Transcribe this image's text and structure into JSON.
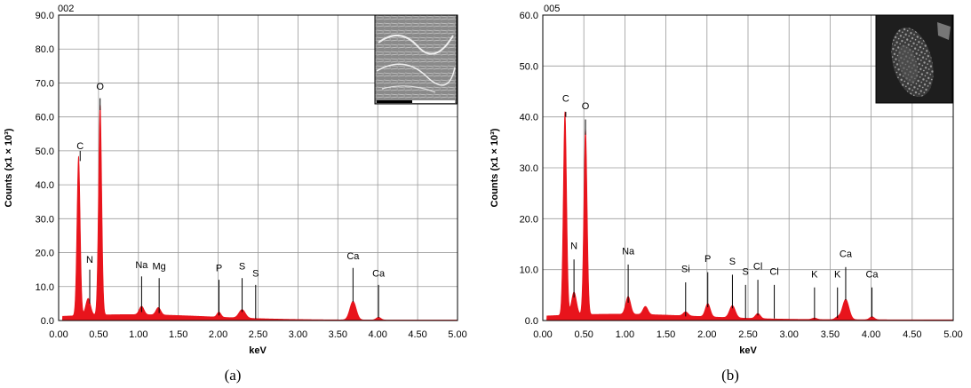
{
  "chart_data": [
    {
      "type": "line",
      "panel_label": "(a)",
      "spectrum_id": "002",
      "xlabel": "keV",
      "ylabel": "Counts (x1 × 10³)",
      "xlim": [
        0.0,
        5.0
      ],
      "ylim": [
        0.0,
        90.0
      ],
      "x_ticks": [
        "0.00",
        "0.50",
        "1.00",
        "1.50",
        "2.00",
        "2.50",
        "3.00",
        "3.50",
        "4.00",
        "4.50",
        "5.00"
      ],
      "y_ticks": [
        "0.0",
        "10.0",
        "20.0",
        "30.0",
        "40.0",
        "50.0",
        "60.0",
        "70.0",
        "80.0",
        "90.0"
      ],
      "grid": true,
      "series_color": "#e8141c",
      "peaks": [
        {
          "x": 0.25,
          "y": 47,
          "w": 0.02
        },
        {
          "x": 0.37,
          "y": 5,
          "w": 0.03
        },
        {
          "x": 0.52,
          "y": 62,
          "w": 0.02
        },
        {
          "x": 1.04,
          "y": 2.5,
          "w": 0.03
        },
        {
          "x": 1.25,
          "y": 2.2,
          "w": 0.03
        },
        {
          "x": 2.01,
          "y": 1.5,
          "w": 0.025
        },
        {
          "x": 2.3,
          "y": 2.5,
          "w": 0.04
        },
        {
          "x": 3.69,
          "y": 5.5,
          "w": 0.04
        },
        {
          "x": 4.01,
          "y": 0.8,
          "w": 0.03
        }
      ],
      "annotations": [
        {
          "label": "C",
          "x": 0.27,
          "y": 50.5,
          "line_top": 50.0,
          "line_bottom": 47.0
        },
        {
          "label": "O",
          "x": 0.52,
          "y": 68.0,
          "line_top": 65.5,
          "line_bottom": 62.0
        },
        {
          "label": "N",
          "x": 0.39,
          "y": 17.0,
          "line_top": 15.0,
          "line_bottom": 5.0
        },
        {
          "label": "Na",
          "x": 1.04,
          "y": 15.5,
          "line_top": 13.0,
          "line_bottom": 2.5
        },
        {
          "label": "Mg",
          "x": 1.26,
          "y": 15.0,
          "line_top": 12.5,
          "line_bottom": 2.2
        },
        {
          "label": "P",
          "x": 2.01,
          "y": 14.5,
          "line_top": 12.0,
          "line_bottom": 1.5
        },
        {
          "label": "S",
          "x": 2.3,
          "y": 15.0,
          "line_top": 12.5,
          "line_bottom": 2.5
        },
        {
          "label": "S",
          "x": 2.47,
          "y": 13.0,
          "line_top": 10.5,
          "line_bottom": 0.5
        },
        {
          "label": "Ca",
          "x": 3.69,
          "y": 18.0,
          "line_top": 15.5,
          "line_bottom": 5.5
        },
        {
          "label": "Ca",
          "x": 4.01,
          "y": 13.0,
          "line_top": 10.5,
          "line_bottom": 0.8
        }
      ],
      "inset": "sem-micrograph"
    },
    {
      "type": "line",
      "panel_label": "(b)",
      "spectrum_id": "005",
      "xlabel": "keV",
      "ylabel": "Counts (x1 × 10³)",
      "xlim": [
        0.0,
        5.0
      ],
      "ylim": [
        0.0,
        60.0
      ],
      "x_ticks": [
        "0.00",
        "0.50",
        "1.00",
        "1.50",
        "2.00",
        "2.50",
        "3.00",
        "3.50",
        "4.00",
        "4.50",
        "5.00"
      ],
      "y_ticks": [
        "0.0",
        "10.0",
        "20.0",
        "30.0",
        "40.0",
        "50.0",
        "60.0"
      ],
      "grid": true,
      "series_color": "#e8141c",
      "peaks": [
        {
          "x": 0.27,
          "y": 40,
          "w": 0.02
        },
        {
          "x": 0.38,
          "y": 4.5,
          "w": 0.03
        },
        {
          "x": 0.52,
          "y": 36.5,
          "w": 0.02
        },
        {
          "x": 1.04,
          "y": 3.5,
          "w": 0.03
        },
        {
          "x": 1.25,
          "y": 1.6,
          "w": 0.03
        },
        {
          "x": 1.74,
          "y": 0.8,
          "w": 0.03
        },
        {
          "x": 2.01,
          "y": 2.6,
          "w": 0.03
        },
        {
          "x": 2.31,
          "y": 2.4,
          "w": 0.035
        },
        {
          "x": 2.62,
          "y": 1.0,
          "w": 0.03
        },
        {
          "x": 3.31,
          "y": 0.3,
          "w": 0.03
        },
        {
          "x": 3.59,
          "y": 0.5,
          "w": 0.03
        },
        {
          "x": 3.69,
          "y": 4.0,
          "w": 0.04
        },
        {
          "x": 4.01,
          "y": 0.6,
          "w": 0.03
        }
      ],
      "annotations": [
        {
          "label": "C",
          "x": 0.28,
          "y": 43.0,
          "line_top": 41.0,
          "line_bottom": 40.0
        },
        {
          "label": "O",
          "x": 0.52,
          "y": 41.5,
          "line_top": 39.5,
          "line_bottom": 36.5
        },
        {
          "label": "N",
          "x": 0.38,
          "y": 14.0,
          "line_top": 12.0,
          "line_bottom": 4.5
        },
        {
          "label": "Na",
          "x": 1.04,
          "y": 13.0,
          "line_top": 11.0,
          "line_bottom": 3.5
        },
        {
          "label": "Si",
          "x": 1.74,
          "y": 9.5,
          "line_top": 7.5,
          "line_bottom": 0.8
        },
        {
          "label": "P",
          "x": 2.01,
          "y": 11.5,
          "line_top": 9.5,
          "line_bottom": 2.6
        },
        {
          "label": "S",
          "x": 2.31,
          "y": 11.0,
          "line_top": 9.0,
          "line_bottom": 2.4
        },
        {
          "label": "S",
          "x": 2.47,
          "y": 9.0,
          "line_top": 7.0,
          "line_bottom": 0.4
        },
        {
          "label": "Cl",
          "x": 2.62,
          "y": 10.0,
          "line_top": 8.0,
          "line_bottom": 1.0
        },
        {
          "label": "Cl",
          "x": 2.82,
          "y": 9.0,
          "line_top": 7.0,
          "line_bottom": 0.4
        },
        {
          "label": "K",
          "x": 3.31,
          "y": 8.5,
          "line_top": 6.5,
          "line_bottom": 0.3
        },
        {
          "label": "K",
          "x": 3.59,
          "y": 8.5,
          "line_top": 6.5,
          "line_bottom": 0.5
        },
        {
          "label": "Ca",
          "x": 3.69,
          "y": 12.5,
          "line_top": 10.5,
          "line_bottom": 4.0
        },
        {
          "label": "Ca",
          "x": 4.01,
          "y": 8.5,
          "line_top": 6.5,
          "line_bottom": 0.6
        }
      ],
      "inset": "sem-micrograph"
    }
  ]
}
